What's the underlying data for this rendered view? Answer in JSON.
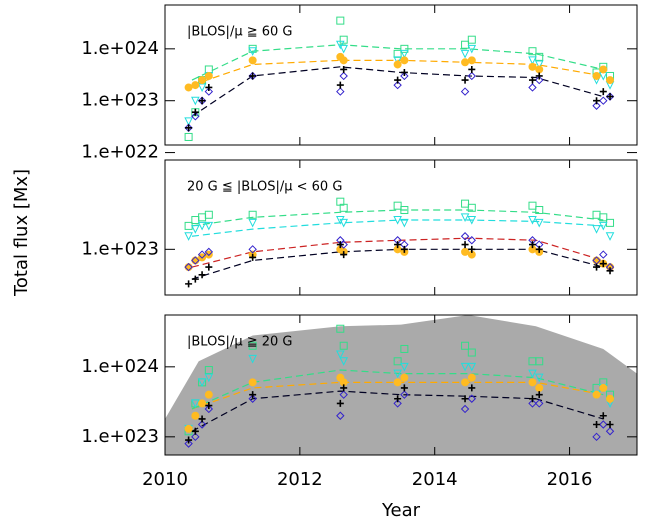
{
  "chart_data": [
    {
      "type": "scatter",
      "annotation": "|BLOS|/μ ≧ 60 G",
      "log_y": true,
      "xlim": [
        2010,
        2017
      ],
      "xticks": [
        2010,
        2012,
        2014,
        2016
      ],
      "show_xtick_labels": false,
      "ylim": [
        1.4e+22,
        7e+24
      ],
      "yticks": [
        {
          "value": 1e+22,
          "label": "1.e+022"
        },
        {
          "value": 1e+23,
          "label": "1.e+023"
        },
        {
          "value": 1e+24,
          "label": "1.e+024"
        }
      ],
      "x": [
        2010.35,
        2010.45,
        2010.55,
        2010.65,
        2011.3,
        2012.6,
        2012.65,
        2013.45,
        2013.55,
        2014.45,
        2014.55,
        2015.45,
        2015.55,
        2016.4,
        2016.5,
        2016.6
      ],
      "series": [
        {
          "style": "dashed",
          "color": "#33dd88",
          "x": [
            2010.4,
            2011.3,
            2012.6,
            2013.5,
            2014.5,
            2015.5,
            2016.5
          ],
          "values": [
            2.5e+23,
            9e+23,
            1.2e+24,
            1e+24,
            1e+24,
            8e+23,
            4e+23
          ]
        },
        {
          "style": "dashed",
          "color": "#ffaa00",
          "x": [
            2010.4,
            2011.3,
            2012.6,
            2013.5,
            2014.5,
            2015.5,
            2016.5
          ],
          "values": [
            2e+23,
            5e+23,
            6e+23,
            6e+23,
            5.5e+23,
            5e+23,
            3e+23
          ]
        },
        {
          "style": "dashed",
          "color": "#000022",
          "x": [
            2010.4,
            2011.3,
            2012.6,
            2013.5,
            2014.5,
            2015.5,
            2016.5
          ],
          "values": [
            5e+22,
            3e+23,
            4.5e+23,
            3.5e+23,
            3e+23,
            2.8e+23,
            1.2e+23
          ]
        },
        {
          "marker": "square",
          "color": "#33dd88",
          "values": [
            2e+22,
            6e+22,
            2.5e+23,
            4e+23,
            1e+24,
            3.5e+24,
            1.5e+24,
            8e+23,
            1e+24,
            1.2e+24,
            1.5e+24,
            9e+23,
            7e+23,
            3.5e+23,
            4.5e+23,
            3e+23
          ]
        },
        {
          "marker": "triangle",
          "color": "#22dddd",
          "values": [
            4e+22,
            1e+23,
            1.8e+23,
            3e+23,
            9e+23,
            1.2e+24,
            1e+24,
            6e+23,
            8e+23,
            8e+23,
            1e+24,
            6e+23,
            5e+23,
            2.5e+23,
            3e+23,
            2e+23
          ]
        },
        {
          "marker": "circle",
          "color": "#ffbb22",
          "values": [
            1.8e+23,
            2e+23,
            2.5e+23,
            3e+23,
            6e+23,
            7e+23,
            6e+23,
            5e+23,
            6e+23,
            5.5e+23,
            6e+23,
            4.5e+23,
            4e+23,
            3e+23,
            4e+23,
            2.5e+23
          ]
        },
        {
          "marker": "diamond",
          "color": "#3322cc",
          "values": [
            3e+22,
            5e+22,
            1e+23,
            1.5e+23,
            3e+23,
            1.5e+23,
            3e+23,
            2e+23,
            3e+23,
            1.5e+23,
            3e+23,
            1.8e+23,
            2.5e+23,
            8e+22,
            1e+23,
            1.2e+23
          ]
        },
        {
          "marker": "plus",
          "color": "#000000",
          "values": [
            3e+22,
            6e+22,
            1e+23,
            1.8e+23,
            3e+23,
            2e+23,
            4e+23,
            2.5e+23,
            3.5e+23,
            2.5e+23,
            4e+23,
            2.5e+23,
            3e+23,
            1e+23,
            1.5e+23,
            1.2e+23
          ]
        }
      ]
    },
    {
      "type": "scatter",
      "annotation": "20 G ≦ |BLOS|/μ < 60 G",
      "log_y": true,
      "ylabel": "Total flux [Mx]",
      "xlim": [
        2010,
        2017
      ],
      "xticks": [
        2010,
        2012,
        2014,
        2016
      ],
      "show_xtick_labels": false,
      "ylim": [
        4e+22,
        6e+23
      ],
      "yticks": [
        {
          "value": 1e+23,
          "label": "1.e+023"
        }
      ],
      "x": [
        2010.35,
        2010.45,
        2010.55,
        2010.65,
        2011.3,
        2012.6,
        2012.65,
        2013.45,
        2013.55,
        2014.45,
        2014.55,
        2015.45,
        2015.55,
        2016.4,
        2016.5,
        2016.6
      ],
      "series": [
        {
          "style": "dashed",
          "color": "#33dd88",
          "x": [
            2010.4,
            2011.3,
            2012.6,
            2013.5,
            2014.5,
            2015.5,
            2016.5
          ],
          "values": [
            1.6e+23,
            1.9e+23,
            2.1e+23,
            2.2e+23,
            2.2e+23,
            2.1e+23,
            1.8e+23
          ]
        },
        {
          "style": "dashed",
          "color": "#22dddd",
          "x": [
            2010.4,
            2011.3,
            2012.6,
            2013.5,
            2014.5,
            2015.5,
            2016.5
          ],
          "values": [
            1.3e+23,
            1.5e+23,
            1.7e+23,
            1.8e+23,
            1.8e+23,
            1.75e+23,
            1.6e+23
          ]
        },
        {
          "style": "dashed",
          "color": "#cc2222",
          "x": [
            2010.4,
            2011.3,
            2012.6,
            2013.5,
            2014.5,
            2015.5,
            2016.5
          ],
          "values": [
            7e+22,
            9.5e+22,
            1.15e+23,
            1.2e+23,
            1.25e+23,
            1.2e+23,
            8e+22
          ]
        },
        {
          "style": "dashed",
          "color": "#000022",
          "x": [
            2010.4,
            2011.3,
            2012.6,
            2013.5,
            2014.5,
            2015.5,
            2016.5
          ],
          "values": [
            5.5e+22,
            8e+22,
            9.5e+22,
            1e+23,
            1e+23,
            1e+23,
            7e+22
          ]
        },
        {
          "marker": "square",
          "color": "#33dd88",
          "values": [
            1.6e+23,
            1.8e+23,
            1.9e+23,
            2e+23,
            2e+23,
            2.6e+23,
            2.3e+23,
            2.4e+23,
            2.2e+23,
            2.5e+23,
            2.3e+23,
            2.4e+23,
            2.2e+23,
            2e+23,
            1.9e+23,
            1.7e+23
          ]
        },
        {
          "marker": "triangle",
          "color": "#22dddd",
          "values": [
            1.3e+23,
            1.5e+23,
            1.6e+23,
            1.6e+23,
            1.7e+23,
            1.8e+23,
            1.7e+23,
            1.8e+23,
            1.7e+23,
            1.9e+23,
            1.8e+23,
            1.8e+23,
            1.7e+23,
            1.5e+23,
            1.6e+23,
            1.3e+23
          ]
        },
        {
          "marker": "circle",
          "color": "#ffbb22",
          "values": [
            7e+22,
            8e+22,
            8.5e+22,
            9e+22,
            9e+22,
            1e+23,
            9.5e+22,
            1e+23,
            9.5e+22,
            9.5e+22,
            9e+22,
            1e+23,
            9.5e+22,
            8e+22,
            7.5e+22,
            7e+22
          ]
        },
        {
          "marker": "diamond",
          "color": "#3322cc",
          "values": [
            7e+22,
            8e+22,
            9e+22,
            9.5e+22,
            1e+23,
            1.2e+23,
            1.1e+23,
            1.2e+23,
            1.1e+23,
            1.3e+23,
            1.2e+23,
            1.2e+23,
            1.1e+23,
            8e+22,
            9e+22,
            7e+22
          ]
        },
        {
          "marker": "plus",
          "color": "#000000",
          "values": [
            5e+22,
            5.5e+22,
            6e+22,
            7e+22,
            8.5e+22,
            1.1e+23,
            9e+22,
            1.1e+23,
            1e+23,
            1.1e+23,
            1e+23,
            1.1e+23,
            1e+23,
            7e+22,
            7.5e+22,
            6.5e+22
          ]
        }
      ]
    },
    {
      "type": "scatter",
      "annotation": "|BLOS|/μ ≧ 20 G",
      "log_y": true,
      "xlabel": "Year",
      "xlim": [
        2010,
        2017
      ],
      "xticks": [
        2010,
        2012,
        2014,
        2016
      ],
      "show_xtick_labels": true,
      "ylim": [
        5.5e+22,
        5.5e+24
      ],
      "yticks": [
        {
          "value": 1e+23,
          "label": "1.e+023"
        },
        {
          "value": 1e+24,
          "label": "1.e+024"
        }
      ],
      "x": [
        2010.35,
        2010.45,
        2010.55,
        2010.65,
        2011.3,
        2012.6,
        2012.65,
        2013.45,
        2013.55,
        2014.45,
        2014.55,
        2015.45,
        2015.55,
        2016.4,
        2016.5,
        2016.6
      ],
      "series": [
        {
          "style": "area",
          "color": "#aaaaaa",
          "x": [
            2010,
            2010.5,
            2011.3,
            2012.6,
            2013.5,
            2014.5,
            2015.5,
            2016.5,
            2017
          ],
          "values": [
            1.8e+23,
            1.2e+24,
            2.8e+24,
            3.8e+24,
            4e+24,
            5.5e+24,
            3.8e+24,
            1.8e+24,
            8e+23
          ]
        },
        {
          "style": "dashed",
          "color": "#ffaa00",
          "x": [
            2010.4,
            2011.3,
            2012.6,
            2013.5,
            2014.5,
            2015.5,
            2016.5
          ],
          "values": [
            2.5e+23,
            5e+23,
            6e+23,
            6e+23,
            6e+23,
            6e+23,
            4e+23
          ]
        },
        {
          "style": "dashed",
          "color": "#33dd88",
          "x": [
            2010.4,
            2011.3,
            2012.6,
            2013.5,
            2014.5,
            2015.5,
            2016.5
          ],
          "values": [
            2.5e+23,
            6e+23,
            9e+23,
            8e+23,
            8e+23,
            7e+23,
            4e+23
          ]
        },
        {
          "style": "dashed",
          "color": "#000022",
          "x": [
            2010.4,
            2011.3,
            2012.6,
            2013.5,
            2014.5,
            2015.5,
            2016.5
          ],
          "values": [
            1.2e+23,
            3.5e+23,
            4.5e+23,
            4e+23,
            3.8e+23,
            3.5e+23,
            1.8e+23
          ]
        },
        {
          "marker": "square",
          "color": "#33dd88",
          "values": [
            1.2e+23,
            3e+23,
            6e+23,
            9e+23,
            2e+24,
            3.5e+24,
            2e+24,
            1.2e+24,
            1.8e+24,
            2e+24,
            1.6e+24,
            1.2e+24,
            1.2e+24,
            5e+23,
            6e+23,
            4e+23
          ]
        },
        {
          "marker": "triangle",
          "color": "#22dddd",
          "values": [
            1.3e+23,
            3e+23,
            6e+23,
            7e+23,
            1.3e+24,
            1.5e+24,
            1.2e+24,
            8e+23,
            1e+24,
            1e+24,
            1e+24,
            8e+23,
            7e+23,
            4e+23,
            5e+23,
            3e+23
          ]
        },
        {
          "marker": "circle",
          "color": "#ffbb22",
          "values": [
            1.3e+23,
            2e+23,
            3e+23,
            4e+23,
            6e+23,
            7e+23,
            6e+23,
            6e+23,
            7e+23,
            6e+23,
            7e+23,
            6e+23,
            5e+23,
            4e+23,
            5e+23,
            3.5e+23
          ]
        },
        {
          "marker": "diamond",
          "color": "#3322cc",
          "values": [
            8e+22,
            1e+23,
            1.5e+23,
            2.5e+23,
            3.5e+23,
            2e+23,
            4e+23,
            3e+23,
            4e+23,
            2.5e+23,
            3.5e+23,
            3e+23,
            3e+23,
            1e+23,
            1.5e+23,
            1.2e+23
          ]
        },
        {
          "marker": "plus",
          "color": "#000000",
          "values": [
            9e+22,
            1.2e+23,
            1.8e+23,
            2.8e+23,
            4e+23,
            3e+23,
            5e+23,
            3.5e+23,
            5e+23,
            3.5e+23,
            5e+23,
            3.5e+23,
            4e+23,
            1.5e+23,
            2e+23,
            1.5e+23
          ]
        }
      ]
    }
  ]
}
